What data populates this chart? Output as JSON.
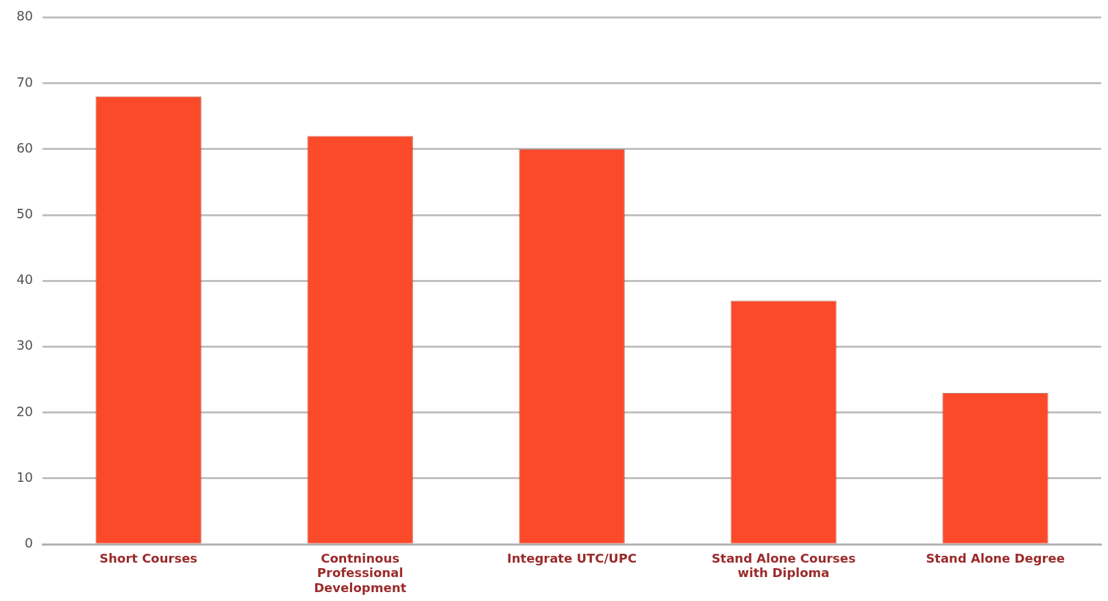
{
  "chart_data": {
    "type": "bar",
    "categories": [
      "Short Courses",
      "Contninous Professional Development",
      "Integrate UTC/UPC",
      "Stand Alone Courses with Diploma",
      "Stand Alone Degree"
    ],
    "values": [
      68,
      62,
      60,
      37,
      23
    ],
    "color": "#fa4a2a",
    "ylim": [
      0,
      80
    ],
    "yticks": [
      0,
      10,
      20,
      30,
      40,
      50,
      60,
      70,
      80
    ],
    "grid": "y"
  }
}
